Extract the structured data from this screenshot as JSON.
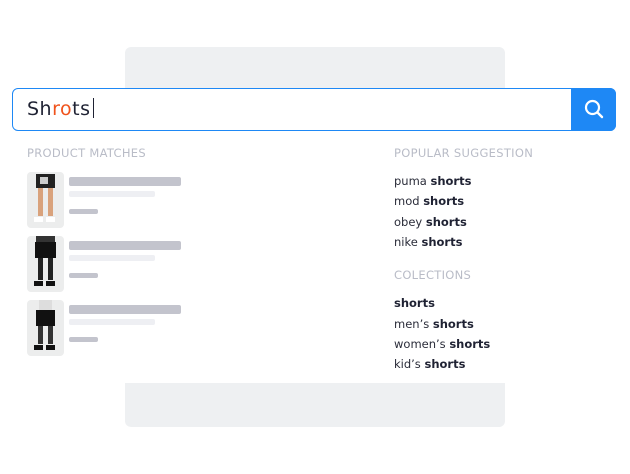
{
  "search": {
    "typed_normal_1": "Sh",
    "typed_error": "ro",
    "typed_normal_2": "ts",
    "button_icon": "search-icon"
  },
  "colors": {
    "accent": "#1e88f5",
    "typo_highlight": "#f0531c"
  },
  "product_matches": {
    "title": "PRODUCT MATCHES",
    "items": [
      {
        "image": "black graphic shorts"
      },
      {
        "image": "black shorts"
      },
      {
        "image": "black striped shorts"
      }
    ]
  },
  "popular": {
    "title": "POPULAR SUGGESTION",
    "items": [
      {
        "prefix": "puma ",
        "term": "shorts"
      },
      {
        "prefix": "mod ",
        "term": "shorts"
      },
      {
        "prefix": "obey ",
        "term": "shorts"
      },
      {
        "prefix": "nike ",
        "term": "shorts"
      }
    ]
  },
  "collections": {
    "title": "COLECTIONS",
    "items": [
      {
        "prefix": "",
        "term": "shorts"
      },
      {
        "prefix": "men’s ",
        "term": "shorts"
      },
      {
        "prefix": "women’s ",
        "term": "shorts"
      },
      {
        "prefix": "kid’s ",
        "term": "shorts"
      }
    ]
  }
}
